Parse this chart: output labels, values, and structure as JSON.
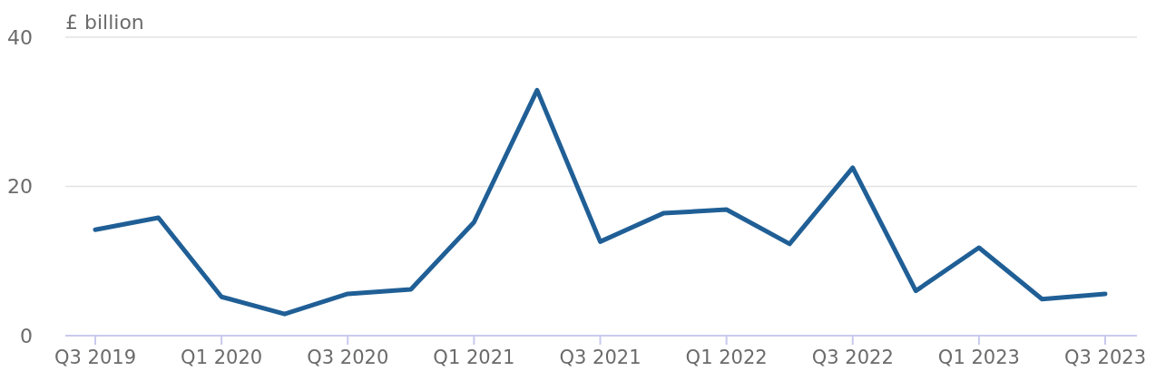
{
  "chart_data": {
    "type": "line",
    "ylabel": "£ billion",
    "categories": [
      "Q3 2019",
      null,
      "Q1 2020",
      null,
      "Q3 2020",
      null,
      "Q1 2021",
      null,
      "Q3 2021",
      null,
      "Q1 2022",
      null,
      "Q3 2022",
      null,
      "Q1 2023",
      null,
      "Q3 2023"
    ],
    "series": [
      {
        "color": "#205f96",
        "values": [
          14.2,
          15.8,
          5.2,
          2.9,
          5.6,
          6.2,
          15.2,
          32.9,
          12.6,
          16.4,
          16.9,
          12.3,
          22.5,
          6.0,
          11.8,
          4.9,
          5.6
        ]
      }
    ],
    "ylim": [
      0,
      40
    ],
    "yticks": [
      0,
      20,
      40
    ],
    "grid": "y",
    "marker": "none",
    "line_style": "solid"
  }
}
